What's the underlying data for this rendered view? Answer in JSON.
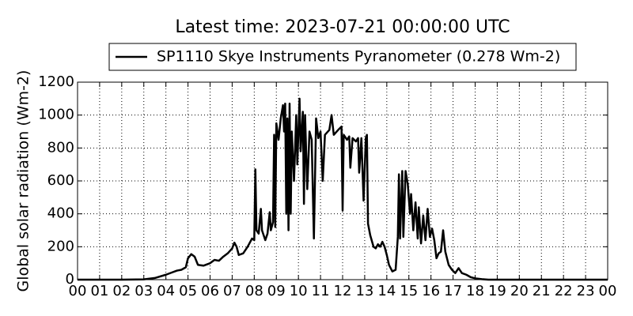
{
  "chart_data": {
    "type": "line",
    "title": "Latest time: 2023-07-21 00:00:00 UTC",
    "y_label": "Global solar radiation (Wm-2)",
    "x": [
      0,
      1,
      2,
      3,
      3.5,
      4,
      4.3,
      4.5,
      4.7,
      4.9,
      5,
      5.15,
      5.3,
      5.45,
      5.7,
      6,
      6.2,
      6.4,
      6.6,
      6.8,
      7,
      7.1,
      7.2,
      7.3,
      7.5,
      7.7,
      7.9,
      8,
      8.05,
      8.1,
      8.2,
      8.3,
      8.35,
      8.5,
      8.6,
      8.7,
      8.75,
      8.85,
      8.9,
      8.95,
      9,
      9.1,
      9.2,
      9.3,
      9.35,
      9.4,
      9.45,
      9.5,
      9.55,
      9.6,
      9.65,
      9.7,
      9.8,
      9.9,
      9.95,
      10.05,
      10.1,
      10.2,
      10.25,
      10.3,
      10.4,
      10.5,
      10.6,
      10.7,
      10.8,
      10.9,
      11,
      11.1,
      11.2,
      11.4,
      11.5,
      11.6,
      11.8,
      11.95,
      12,
      12.05,
      12.2,
      12.3,
      12.35,
      12.45,
      12.6,
      12.7,
      12.75,
      12.85,
      12.95,
      13.05,
      13.1,
      13.15,
      13.25,
      13.4,
      13.5,
      13.6,
      13.7,
      13.8,
      13.9,
      14,
      14.1,
      14.25,
      14.4,
      14.5,
      14.55,
      14.6,
      14.7,
      14.75,
      14.85,
      14.95,
      15.05,
      15.1,
      15.2,
      15.3,
      15.4,
      15.45,
      15.55,
      15.65,
      15.75,
      15.85,
      15.95,
      16.05,
      16.15,
      16.25,
      16.35,
      16.45,
      16.55,
      16.65,
      16.8,
      16.95,
      17.1,
      17.25,
      17.4,
      17.6,
      17.8,
      18,
      18.3,
      18.6,
      24
    ],
    "series": [
      {
        "name": "SP1110 Skye Instruments Pyranometer (0.278 Wm-2)",
        "color": "#000000",
        "values": [
          0,
          0,
          0,
          2,
          10,
          30,
          45,
          55,
          60,
          75,
          130,
          155,
          140,
          90,
          85,
          100,
          120,
          115,
          140,
          160,
          190,
          225,
          200,
          150,
          160,
          200,
          250,
          240,
          670,
          300,
          280,
          430,
          300,
          240,
          280,
          410,
          300,
          350,
          880,
          320,
          950,
          850,
          980,
          1060,
          900,
          1070,
          400,
          980,
          300,
          1070,
          400,
          900,
          600,
          1000,
          700,
          1100,
          780,
          1020,
          460,
          1000,
          550,
          900,
          850,
          250,
          980,
          860,
          900,
          600,
          880,
          910,
          1000,
          880,
          910,
          930,
          420,
          880,
          850,
          870,
          680,
          860,
          840,
          860,
          650,
          860,
          480,
          860,
          880,
          340,
          270,
          200,
          190,
          215,
          200,
          230,
          200,
          150,
          90,
          50,
          60,
          260,
          640,
          250,
          660,
          260,
          660,
          580,
          400,
          520,
          300,
          470,
          250,
          440,
          220,
          390,
          240,
          430,
          260,
          310,
          240,
          130,
          160,
          170,
          300,
          170,
          90,
          60,
          40,
          70,
          40,
          30,
          15,
          8,
          3,
          0,
          0
        ]
      }
    ],
    "xlim": [
      0,
      24
    ],
    "xticks": [
      {
        "value": 0,
        "label": "00"
      },
      {
        "value": 1,
        "label": "01"
      },
      {
        "value": 2,
        "label": "02"
      },
      {
        "value": 3,
        "label": "03"
      },
      {
        "value": 4,
        "label": "04"
      },
      {
        "value": 5,
        "label": "05"
      },
      {
        "value": 6,
        "label": "06"
      },
      {
        "value": 7,
        "label": "07"
      },
      {
        "value": 8,
        "label": "08"
      },
      {
        "value": 9,
        "label": "09"
      },
      10,
      11,
      12,
      13,
      14,
      15,
      16,
      17,
      18,
      19,
      20,
      21,
      22,
      23,
      {
        "value": 24,
        "label": "00"
      }
    ],
    "ylim": [
      0,
      1200
    ],
    "yticks": [
      0,
      200,
      400,
      600,
      800,
      1000,
      1200
    ],
    "grid": true,
    "legend": "top"
  }
}
